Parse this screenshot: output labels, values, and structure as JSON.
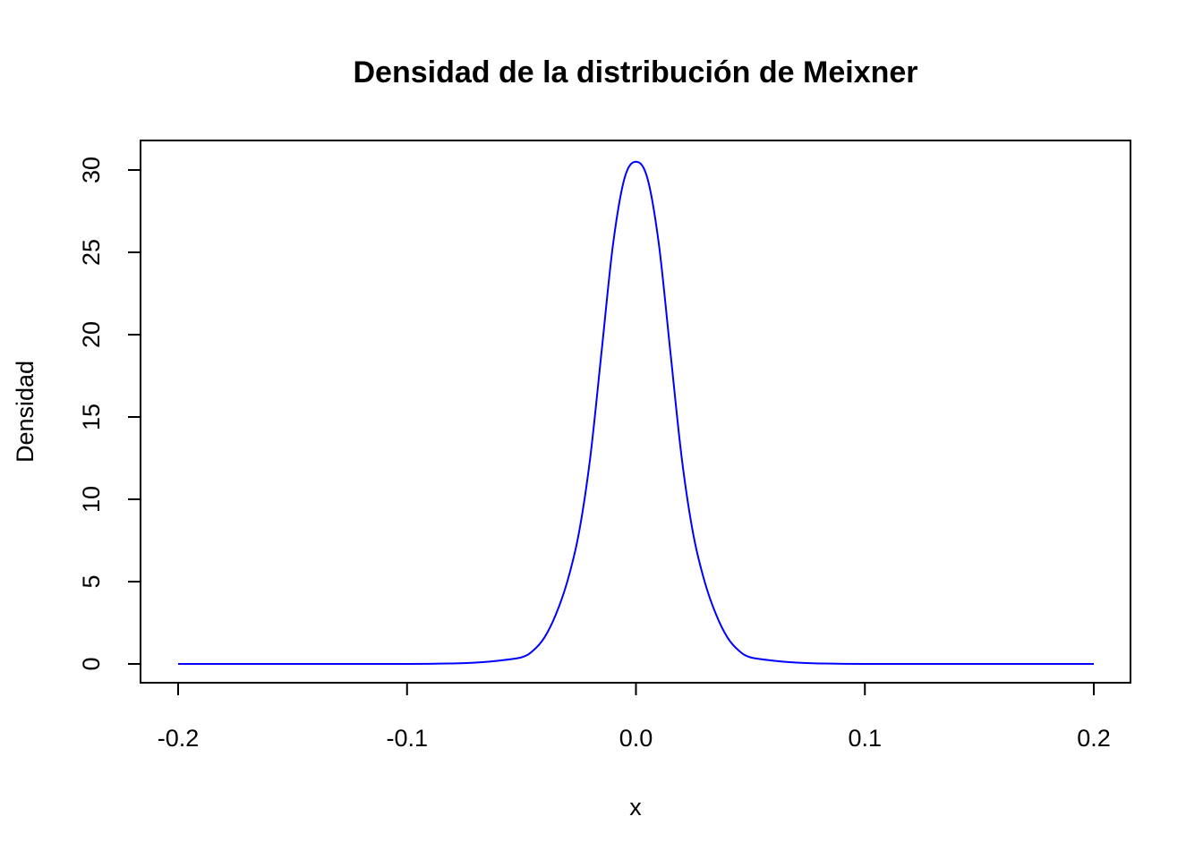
{
  "chart_data": {
    "type": "line",
    "title": "Densidad de la distribución de Meixner",
    "xlabel": "x",
    "ylabel": "Densidad",
    "xlim": [
      -0.2,
      0.2
    ],
    "ylim": [
      0,
      30.5
    ],
    "x_ticks": [
      "-0.2",
      "-0.1",
      "0.0",
      "0.1",
      "0.2"
    ],
    "y_ticks": [
      "0",
      "5",
      "10",
      "15",
      "20",
      "25",
      "30"
    ],
    "grid": false,
    "legend": "none",
    "series": [
      {
        "color": "#0000ff",
        "x": [
          -0.2,
          -0.15,
          -0.1,
          -0.08,
          -0.07,
          -0.06,
          -0.05,
          -0.045,
          -0.04,
          -0.035,
          -0.03,
          -0.025,
          -0.02,
          -0.015,
          -0.01,
          -0.005,
          0.0,
          0.005,
          0.01,
          0.015,
          0.02,
          0.025,
          0.03,
          0.035,
          0.04,
          0.045,
          0.05,
          0.06,
          0.07,
          0.08,
          0.1,
          0.15,
          0.2
        ],
        "y": [
          0.0,
          0.0,
          0.0,
          0.03,
          0.08,
          0.2,
          0.4,
          0.8,
          1.6,
          3.0,
          5.0,
          7.9,
          12.5,
          19.0,
          25.5,
          29.5,
          30.5,
          29.5,
          25.5,
          19.0,
          12.5,
          7.9,
          5.0,
          3.0,
          1.6,
          0.8,
          0.4,
          0.2,
          0.08,
          0.03,
          0.0,
          0.0,
          0.0
        ]
      }
    ]
  }
}
